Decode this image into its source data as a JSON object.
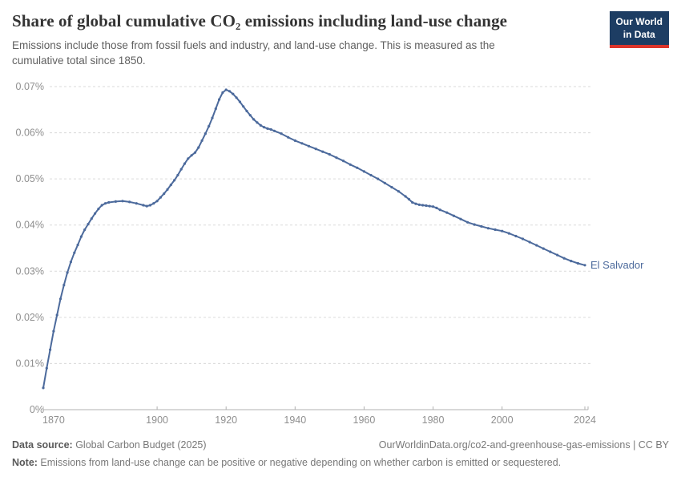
{
  "header": {
    "title": "Share of global cumulative CO₂ emissions including land-use change",
    "subtitle": "Emissions include those from fossil fuels and industry, and land-use change. This is measured as the cumulative total since 1850.",
    "logo_line1": "Our World",
    "logo_line2": "in Data"
  },
  "footer": {
    "source_label": "Data source:",
    "source_value": " Global Carbon Budget (2025)",
    "link": "OurWorldinData.org/co2-and-greenhouse-gas-emissions | CC BY",
    "note_label": "Note:",
    "note_value": " Emissions from land-use change can be positive or negative depending on whether carbon is emitted or sequestered."
  },
  "colors": {
    "brand_navy": "#1d3d63",
    "brand_red": "#dc352b",
    "line_blue": "#4c6a9c",
    "grid": "#dadada",
    "axis": "#b0b0b0",
    "tick_text": "#8f8f8f"
  },
  "chart_data": {
    "type": "line",
    "title": "Share of global cumulative CO₂ emissions including land-use change",
    "xlabel": "",
    "ylabel": "",
    "unit": "%",
    "grid": true,
    "legend_position": "end-of-line-label",
    "xlim": [
      1867,
      2024
    ],
    "ylim": [
      0,
      0.07
    ],
    "xticks": [
      1870,
      1900,
      1920,
      1940,
      1960,
      1980,
      2000,
      2024
    ],
    "yticks": [
      0,
      0.01,
      0.02,
      0.03,
      0.04,
      0.05,
      0.06,
      0.07
    ],
    "series": [
      {
        "name": "El Salvador",
        "color": "#4c6a9c",
        "points": [
          [
            1867,
            0.0047
          ],
          [
            1868,
            0.009
          ],
          [
            1869,
            0.013
          ],
          [
            1870,
            0.017
          ],
          [
            1871,
            0.0205
          ],
          [
            1872,
            0.024
          ],
          [
            1873,
            0.027
          ],
          [
            1874,
            0.0297
          ],
          [
            1875,
            0.032
          ],
          [
            1876,
            0.034
          ],
          [
            1877,
            0.0357
          ],
          [
            1878,
            0.0375
          ],
          [
            1879,
            0.039
          ],
          [
            1880,
            0.0402
          ],
          [
            1881,
            0.0414
          ],
          [
            1882,
            0.0425
          ],
          [
            1883,
            0.0435
          ],
          [
            1884,
            0.0443
          ],
          [
            1885,
            0.0447
          ],
          [
            1886,
            0.0449
          ],
          [
            1888,
            0.0451
          ],
          [
            1890,
            0.0452
          ],
          [
            1892,
            0.045
          ],
          [
            1894,
            0.0447
          ],
          [
            1896,
            0.0443
          ],
          [
            1897,
            0.0441
          ],
          [
            1898,
            0.0443
          ],
          [
            1899,
            0.0447
          ],
          [
            1900,
            0.0452
          ],
          [
            1901,
            0.046
          ],
          [
            1902,
            0.0468
          ],
          [
            1903,
            0.0477
          ],
          [
            1904,
            0.0487
          ],
          [
            1905,
            0.0497
          ],
          [
            1906,
            0.0508
          ],
          [
            1907,
            0.0521
          ],
          [
            1908,
            0.0533
          ],
          [
            1909,
            0.0544
          ],
          [
            1910,
            0.0551
          ],
          [
            1911,
            0.0557
          ],
          [
            1912,
            0.0568
          ],
          [
            1913,
            0.0583
          ],
          [
            1914,
            0.0598
          ],
          [
            1915,
            0.0614
          ],
          [
            1916,
            0.0632
          ],
          [
            1917,
            0.0652
          ],
          [
            1918,
            0.0672
          ],
          [
            1919,
            0.0687
          ],
          [
            1920,
            0.0693
          ],
          [
            1921,
            0.069
          ],
          [
            1922,
            0.0684
          ],
          [
            1923,
            0.0676
          ],
          [
            1924,
            0.0667
          ],
          [
            1925,
            0.0657
          ],
          [
            1926,
            0.0647
          ],
          [
            1927,
            0.0638
          ],
          [
            1928,
            0.0629
          ],
          [
            1929,
            0.0622
          ],
          [
            1930,
            0.0616
          ],
          [
            1931,
            0.0612
          ],
          [
            1932,
            0.0609
          ],
          [
            1933,
            0.0607
          ],
          [
            1934,
            0.0604
          ],
          [
            1936,
            0.0598
          ],
          [
            1938,
            0.059
          ],
          [
            1940,
            0.0583
          ],
          [
            1942,
            0.0577
          ],
          [
            1944,
            0.0571
          ],
          [
            1946,
            0.0565
          ],
          [
            1948,
            0.0559
          ],
          [
            1950,
            0.0553
          ],
          [
            1952,
            0.0546
          ],
          [
            1954,
            0.0539
          ],
          [
            1956,
            0.0531
          ],
          [
            1958,
            0.0524
          ],
          [
            1960,
            0.0516
          ],
          [
            1962,
            0.0508
          ],
          [
            1964,
            0.05
          ],
          [
            1966,
            0.0491
          ],
          [
            1968,
            0.0482
          ],
          [
            1970,
            0.0473
          ],
          [
            1972,
            0.0462
          ],
          [
            1973,
            0.0456
          ],
          [
            1974,
            0.0449
          ],
          [
            1975,
            0.0446
          ],
          [
            1976,
            0.0444
          ],
          [
            1977,
            0.0443
          ],
          [
            1978,
            0.0442
          ],
          [
            1979,
            0.0441
          ],
          [
            1980,
            0.044
          ],
          [
            1981,
            0.0437
          ],
          [
            1982,
            0.0433
          ],
          [
            1984,
            0.0427
          ],
          [
            1986,
            0.042
          ],
          [
            1988,
            0.0413
          ],
          [
            1990,
            0.0406
          ],
          [
            1992,
            0.0401
          ],
          [
            1994,
            0.0397
          ],
          [
            1996,
            0.0393
          ],
          [
            1998,
            0.039
          ],
          [
            2000,
            0.0387
          ],
          [
            2002,
            0.0382
          ],
          [
            2004,
            0.0376
          ],
          [
            2006,
            0.037
          ],
          [
            2008,
            0.0363
          ],
          [
            2010,
            0.0356
          ],
          [
            2012,
            0.0349
          ],
          [
            2014,
            0.0342
          ],
          [
            2016,
            0.0335
          ],
          [
            2018,
            0.0328
          ],
          [
            2020,
            0.0322
          ],
          [
            2022,
            0.0317
          ],
          [
            2024,
            0.0313
          ]
        ]
      }
    ]
  }
}
